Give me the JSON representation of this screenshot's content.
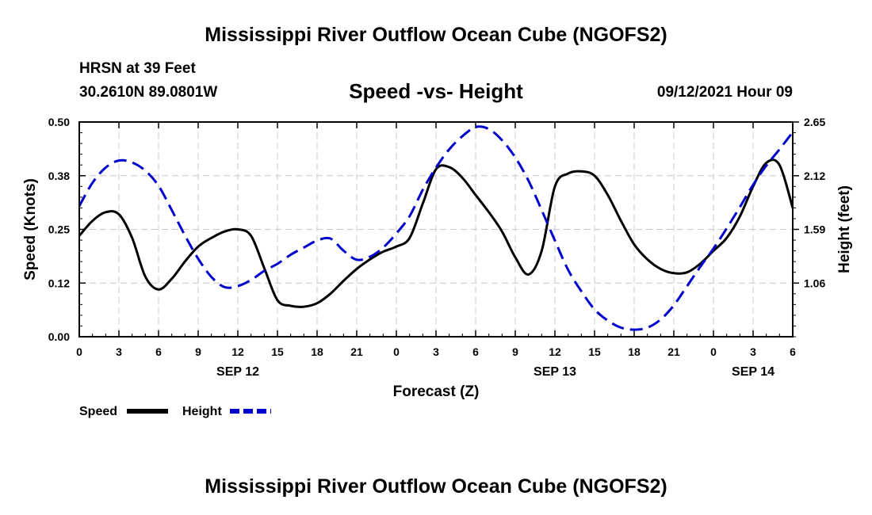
{
  "header": {
    "title": "Mississippi River Outflow Ocean Cube (NGOFS2)",
    "station": "HRSN at 39 Feet",
    "coords": "30.2610N  89.0801W",
    "subtitle": "Speed -vs- Height",
    "datetime": "09/12/2021 Hour 09"
  },
  "footer": {
    "title": "Mississippi River Outflow Ocean Cube (NGOFS2)"
  },
  "chart_data": {
    "type": "line",
    "xlabel": "Forecast (Z)",
    "ylabel": "Speed (Knots)",
    "y2label": "Height (feet)",
    "xlim": [
      0,
      54
    ],
    "ylim": [
      0.0,
      0.5
    ],
    "y2lim": [
      0.53,
      2.65
    ],
    "grid": true,
    "x_ticks": [
      0,
      3,
      6,
      9,
      12,
      15,
      18,
      21,
      24,
      27,
      30,
      33,
      36,
      39,
      42,
      45,
      48,
      51,
      54
    ],
    "x_tick_labels": [
      "0",
      "3",
      "6",
      "9",
      "12",
      "15",
      "18",
      "21",
      "0",
      "3",
      "6",
      "9",
      "12",
      "15",
      "18",
      "21",
      "0",
      "3",
      "6"
    ],
    "y_ticks": [
      0.0,
      0.125,
      0.25,
      0.375,
      0.5
    ],
    "y_tick_labels": [
      "0.00",
      "0.12",
      "0.25",
      "0.38",
      "0.50"
    ],
    "y2_ticks": [
      1.06,
      1.59,
      2.12,
      2.65
    ],
    "y2_tick_labels": [
      "1.06",
      "1.59",
      "2.12",
      "2.65"
    ],
    "date_labels": [
      {
        "x": 12,
        "label": "SEP 12"
      },
      {
        "x": 36,
        "label": "SEP 13"
      },
      {
        "x": 51,
        "label": "SEP 14"
      }
    ],
    "series": [
      {
        "name": "Speed",
        "axis": "left",
        "color": "#000000",
        "dash": "solid",
        "x": [
          0,
          1,
          2,
          3,
          4,
          5,
          6,
          7,
          8,
          9,
          10,
          11,
          12,
          13,
          14,
          15,
          16,
          17,
          18,
          19,
          20,
          21,
          22,
          23,
          24,
          25,
          26,
          27,
          28,
          29,
          30,
          31,
          32,
          33,
          34,
          35,
          36,
          37,
          38,
          39,
          40,
          41,
          42,
          43,
          44,
          45,
          46,
          47,
          48,
          49,
          50,
          51,
          52,
          53,
          54
        ],
        "values": [
          0.235,
          0.27,
          0.29,
          0.285,
          0.23,
          0.14,
          0.11,
          0.135,
          0.175,
          0.21,
          0.23,
          0.245,
          0.25,
          0.235,
          0.16,
          0.085,
          0.072,
          0.07,
          0.078,
          0.1,
          0.13,
          0.158,
          0.18,
          0.198,
          0.21,
          0.23,
          0.31,
          0.39,
          0.395,
          0.37,
          0.33,
          0.29,
          0.245,
          0.185,
          0.145,
          0.2,
          0.35,
          0.38,
          0.385,
          0.375,
          0.33,
          0.27,
          0.215,
          0.18,
          0.158,
          0.148,
          0.15,
          0.17,
          0.2,
          0.23,
          0.28,
          0.35,
          0.405,
          0.4,
          0.3
        ]
      },
      {
        "name": "Height",
        "axis": "right",
        "color": "#0000cc",
        "dash": "dashed",
        "x": [
          0,
          1,
          2,
          3,
          4,
          5,
          6,
          7,
          8,
          9,
          10,
          11,
          12,
          13,
          14,
          15,
          16,
          17,
          18,
          19,
          20,
          21,
          22,
          23,
          24,
          25,
          26,
          27,
          28,
          29,
          30,
          31,
          32,
          33,
          34,
          35,
          36,
          37,
          38,
          39,
          40,
          41,
          42,
          43,
          44,
          45,
          46,
          47,
          48,
          49,
          50,
          51,
          52,
          53,
          54
        ],
        "values": [
          1.82,
          2.05,
          2.2,
          2.27,
          2.25,
          2.17,
          2.02,
          1.78,
          1.53,
          1.3,
          1.12,
          1.02,
          1.03,
          1.09,
          1.18,
          1.25,
          1.34,
          1.41,
          1.48,
          1.5,
          1.38,
          1.29,
          1.32,
          1.41,
          1.55,
          1.72,
          1.98,
          2.2,
          2.38,
          2.51,
          2.6,
          2.58,
          2.47,
          2.3,
          2.07,
          1.78,
          1.48,
          1.19,
          0.98,
          0.8,
          0.69,
          0.62,
          0.6,
          0.62,
          0.7,
          0.84,
          1.03,
          1.22,
          1.4,
          1.6,
          1.81,
          2.03,
          2.22,
          2.38,
          2.55
        ]
      }
    ],
    "legend": [
      {
        "label": "Speed",
        "color": "#000000",
        "dash": "solid"
      },
      {
        "label": "Height",
        "color": "#0000cc",
        "dash": "dashed"
      }
    ],
    "legend_position": "bottom-left"
  }
}
